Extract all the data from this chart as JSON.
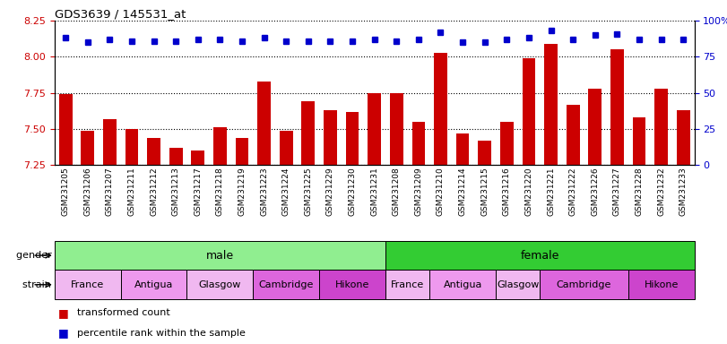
{
  "title": "GDS3639 / 145531_at",
  "samples": [
    "GSM231205",
    "GSM231206",
    "GSM231207",
    "GSM231211",
    "GSM231212",
    "GSM231213",
    "GSM231217",
    "GSM231218",
    "GSM231219",
    "GSM231223",
    "GSM231224",
    "GSM231225",
    "GSM231229",
    "GSM231230",
    "GSM231231",
    "GSM231208",
    "GSM231209",
    "GSM231210",
    "GSM231214",
    "GSM231215",
    "GSM231216",
    "GSM231220",
    "GSM231221",
    "GSM231222",
    "GSM231226",
    "GSM231227",
    "GSM231228",
    "GSM231232",
    "GSM231233"
  ],
  "bar_values": [
    7.74,
    7.49,
    7.57,
    7.5,
    7.44,
    7.37,
    7.35,
    7.51,
    7.44,
    7.83,
    7.49,
    7.69,
    7.63,
    7.62,
    7.75,
    7.75,
    7.55,
    8.03,
    7.47,
    7.42,
    7.55,
    7.99,
    8.09,
    7.67,
    7.78,
    8.05,
    7.58,
    7.78,
    7.63
  ],
  "percentile_values": [
    88,
    85,
    87,
    86,
    86,
    86,
    87,
    87,
    86,
    88,
    86,
    86,
    86,
    86,
    87,
    86,
    87,
    92,
    85,
    85,
    87,
    88,
    93,
    87,
    90,
    91,
    87,
    87,
    87
  ],
  "bar_color": "#cc0000",
  "dot_color": "#0000cc",
  "ylim_left": [
    7.25,
    8.25
  ],
  "ylim_right": [
    0,
    100
  ],
  "yticks_left": [
    7.25,
    7.5,
    7.75,
    8.0,
    8.25
  ],
  "yticks_right": [
    0,
    25,
    50,
    75,
    100
  ],
  "ytick_labels_right": [
    "0",
    "25",
    "50",
    "75",
    "100%"
  ],
  "gender_groups": [
    {
      "label": "male",
      "start": 0,
      "end": 15,
      "color": "#90ee90"
    },
    {
      "label": "female",
      "start": 15,
      "end": 29,
      "color": "#33cc33"
    }
  ],
  "strain_groups": [
    {
      "label": "France",
      "start": 0,
      "end": 3,
      "color": "#f0b8f0"
    },
    {
      "label": "Antigua",
      "start": 3,
      "end": 6,
      "color": "#ee99ee"
    },
    {
      "label": "Glasgow",
      "start": 6,
      "end": 9,
      "color": "#f0b8f0"
    },
    {
      "label": "Cambridge",
      "start": 9,
      "end": 12,
      "color": "#dd66dd"
    },
    {
      "label": "Hikone",
      "start": 12,
      "end": 15,
      "color": "#cc44cc"
    },
    {
      "label": "France",
      "start": 15,
      "end": 17,
      "color": "#f0b8f0"
    },
    {
      "label": "Antigua",
      "start": 17,
      "end": 20,
      "color": "#ee99ee"
    },
    {
      "label": "Glasgow",
      "start": 20,
      "end": 22,
      "color": "#f0b8f0"
    },
    {
      "label": "Cambridge",
      "start": 22,
      "end": 26,
      "color": "#dd66dd"
    },
    {
      "label": "Hikone",
      "start": 26,
      "end": 29,
      "color": "#cc44cc"
    }
  ],
  "legend_items": [
    {
      "label": "transformed count",
      "color": "#cc0000"
    },
    {
      "label": "percentile rank within the sample",
      "color": "#0000cc"
    }
  ],
  "n_male": 15,
  "n_total": 29,
  "baseline": 7.25
}
